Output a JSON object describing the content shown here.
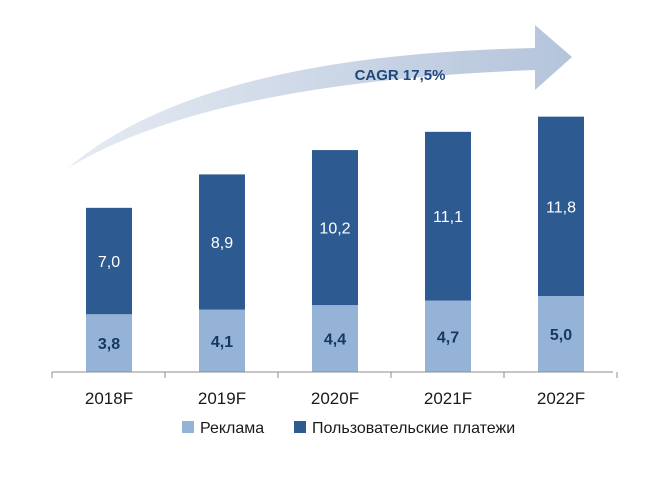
{
  "chart_data": {
    "type": "bar",
    "stacked": true,
    "categories": [
      "2018F",
      "2019F",
      "2020F",
      "2021F",
      "2022F"
    ],
    "series": [
      {
        "name": "Реклама",
        "values": [
          3.8,
          4.1,
          4.4,
          4.7,
          5.0
        ],
        "color": "#95b3d7",
        "value_labels": [
          "3,8",
          "4,1",
          "4,4",
          "4,7",
          "5,0"
        ]
      },
      {
        "name": "Пользовательские платежи",
        "values": [
          7.0,
          8.9,
          10.2,
          11.1,
          11.8
        ],
        "color": "#2d5b91",
        "value_labels": [
          "7,0",
          "8,9",
          "10,2",
          "11,1",
          "11,8"
        ]
      }
    ],
    "ylim": [
      0,
      17
    ],
    "grid": false,
    "legend": "bottom",
    "annotation": {
      "text": "CAGR 17,5%",
      "color": "#1f497d",
      "arrow_color": "#c3cfe0"
    }
  }
}
